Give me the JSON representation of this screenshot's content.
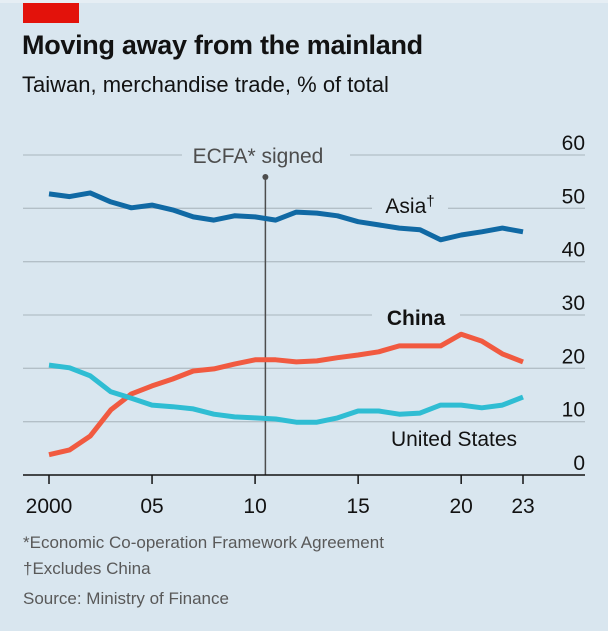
{
  "header": {
    "title": "Moving away from the mainland",
    "subtitle": "Taiwan, merchandise trade, % of total"
  },
  "colors": {
    "background": "#d9e6ef",
    "brand_red": "#e3120b",
    "asia": "#1069a4",
    "china": "#f15a40",
    "united_states": "#2fbdd3",
    "gridline": "#b3bfc7",
    "annotation_line": "#4d4d4d"
  },
  "footnotes": {
    "asterisk": "*Economic Co-operation Framework Agreement",
    "dagger": "†Excludes China",
    "source": "Source: Ministry of Finance"
  },
  "chart_data": {
    "type": "line",
    "title": "Moving away from the mainland",
    "subtitle": "Taiwan, merchandise trade, % of total",
    "xlabel": "",
    "ylabel": "% of total",
    "x": [
      2000,
      2001,
      2002,
      2003,
      2004,
      2005,
      2006,
      2007,
      2008,
      2009,
      2010,
      2011,
      2012,
      2013,
      2014,
      2015,
      2016,
      2017,
      2018,
      2019,
      2020,
      2021,
      2022,
      2023
    ],
    "xlim": [
      2000,
      2023
    ],
    "ylim": [
      0,
      60
    ],
    "x_ticks": [
      2000,
      2005,
      2010,
      2015,
      2020,
      2023
    ],
    "x_tick_labels": [
      "2000",
      "05",
      "10",
      "15",
      "20",
      "23"
    ],
    "y_ticks": [
      0,
      10,
      20,
      30,
      40,
      50,
      60
    ],
    "y_tick_labels": [
      "0",
      "10",
      "20",
      "30",
      "40",
      "50",
      "60"
    ],
    "y_axis_side": "right",
    "grid": true,
    "legend": "inline-labels",
    "series": [
      {
        "name": "Asia†",
        "label_bold": false,
        "color": "#1069a4",
        "values": [
          52.7,
          52.2,
          52.9,
          51.2,
          50.1,
          50.6,
          49.7,
          48.4,
          47.8,
          48.6,
          48.4,
          47.8,
          49.3,
          49.1,
          48.6,
          47.5,
          46.9,
          46.3,
          46.0,
          44.1,
          45.0,
          45.6,
          46.3,
          45.6
        ]
      },
      {
        "name": "China",
        "label_bold": true,
        "color": "#f15a40",
        "values": [
          3.8,
          4.7,
          7.3,
          12.2,
          15.2,
          16.7,
          18.0,
          19.5,
          19.9,
          20.8,
          21.6,
          21.6,
          21.2,
          21.4,
          22.0,
          22.5,
          23.1,
          24.2,
          24.2,
          24.2,
          26.4,
          25.1,
          22.7,
          21.2
        ]
      },
      {
        "name": "United States",
        "label_bold": false,
        "color": "#2fbdd3",
        "values": [
          20.6,
          20.1,
          18.6,
          15.6,
          14.4,
          13.1,
          12.8,
          12.4,
          11.4,
          10.9,
          10.7,
          10.5,
          9.9,
          9.9,
          10.7,
          12.0,
          12.0,
          11.4,
          11.6,
          13.1,
          13.1,
          12.6,
          13.1,
          14.6
        ]
      }
    ],
    "annotations": [
      {
        "text": "ECFA* signed",
        "x": 2010.5,
        "type": "vertical-line"
      }
    ]
  }
}
